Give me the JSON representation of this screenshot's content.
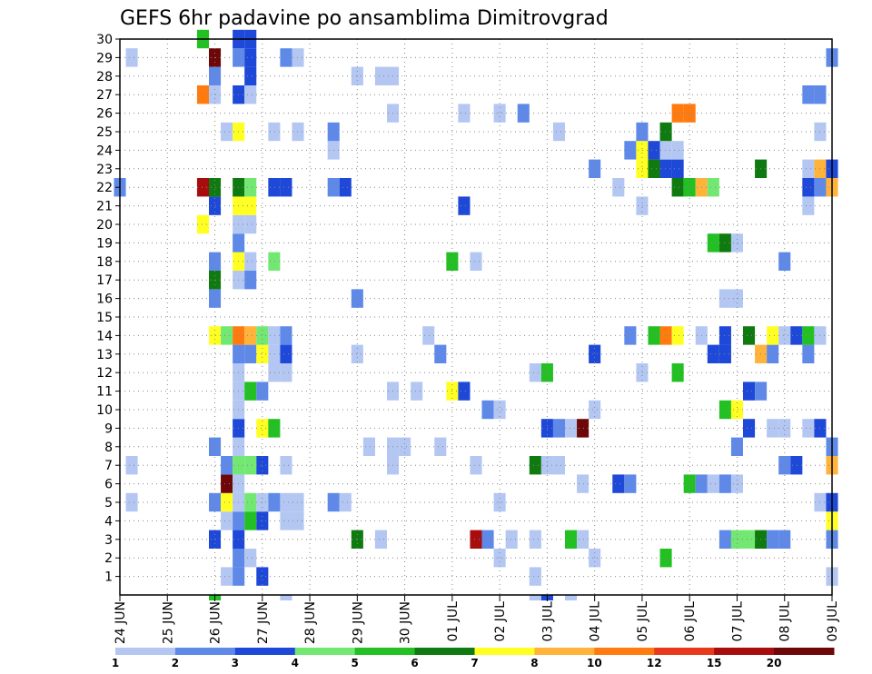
{
  "chart_data": {
    "type": "heatmap",
    "title": "GEFS 6hr padavine po ansamblima Dimitrovgrad",
    "xlabel": "",
    "ylabel": "",
    "x_tick_labels": [
      "24 JUN",
      "25 JUN",
      "26 JUN",
      "27 JUN",
      "28 JUN",
      "29 JUN",
      "30 JUN",
      "01 JUL",
      "02 JUL",
      "03 JUL",
      "04 JUL",
      "05 JUL",
      "06 JUL",
      "07 JUL",
      "08 JUL",
      "09 JUL"
    ],
    "x_range_steps": [
      0,
      60
    ],
    "y_tick_labels": [
      1,
      2,
      3,
      4,
      5,
      6,
      7,
      8,
      9,
      10,
      11,
      12,
      13,
      14,
      15,
      16,
      17,
      18,
      19,
      20,
      21,
      22,
      23,
      24,
      25,
      26,
      27,
      28,
      29,
      30
    ],
    "y_range": [
      0,
      30
    ],
    "grid": true,
    "legend": {
      "placement": "bottom",
      "boundaries": [
        1,
        2,
        3,
        4,
        5,
        6,
        7,
        8,
        10,
        12,
        15,
        20
      ],
      "colors": [
        "#b3c7f2",
        "#5e89e8",
        "#1d48d8",
        "#72e872",
        "#22c022",
        "#0f7a0f",
        "#ffff22",
        "#ffb33a",
        "#ff7b10",
        "#e83a1a",
        "#a80d0d",
        "#6e0707"
      ]
    },
    "cells_level_index_by_member": {
      "1": [
        [
          9,
          0
        ],
        [
          10,
          1
        ],
        [
          12,
          2
        ],
        [
          35,
          0
        ],
        [
          60,
          0
        ]
      ],
      "2": [
        [
          10,
          1
        ],
        [
          11,
          0
        ],
        [
          32,
          0
        ],
        [
          40,
          0
        ],
        [
          46,
          4
        ]
      ],
      "3": [
        [
          8,
          2
        ],
        [
          10,
          2
        ],
        [
          20,
          5
        ],
        [
          22,
          0
        ],
        [
          30,
          10
        ],
        [
          31,
          1
        ],
        [
          33,
          0
        ],
        [
          35,
          0
        ],
        [
          38,
          4
        ],
        [
          39,
          0
        ],
        [
          51,
          1
        ],
        [
          52,
          3
        ],
        [
          53,
          3
        ],
        [
          54,
          5
        ],
        [
          55,
          1
        ],
        [
          56,
          1
        ],
        [
          60,
          1
        ]
      ],
      "4": [
        [
          9,
          0
        ],
        [
          10,
          1
        ],
        [
          11,
          4
        ],
        [
          12,
          2
        ],
        [
          14,
          0
        ],
        [
          15,
          0
        ],
        [
          60,
          6
        ]
      ],
      "5": [
        [
          1,
          0
        ],
        [
          8,
          1
        ],
        [
          9,
          6
        ],
        [
          10,
          0
        ],
        [
          11,
          3
        ],
        [
          12,
          0
        ],
        [
          13,
          1
        ],
        [
          14,
          0
        ],
        [
          15,
          0
        ],
        [
          18,
          1
        ],
        [
          19,
          0
        ],
        [
          32,
          0
        ],
        [
          59,
          0
        ],
        [
          60,
          2
        ]
      ],
      "6": [
        [
          9,
          11
        ],
        [
          10,
          0
        ],
        [
          39,
          0
        ],
        [
          42,
          2
        ],
        [
          43,
          1
        ],
        [
          48,
          4
        ],
        [
          49,
          1
        ],
        [
          50,
          0
        ],
        [
          51,
          1
        ],
        [
          52,
          0
        ]
      ],
      "7": [
        [
          1,
          0
        ],
        [
          9,
          1
        ],
        [
          10,
          3
        ],
        [
          11,
          3
        ],
        [
          12,
          2
        ],
        [
          14,
          0
        ],
        [
          23,
          0
        ],
        [
          30,
          0
        ],
        [
          35,
          5
        ],
        [
          36,
          0
        ],
        [
          37,
          0
        ],
        [
          56,
          1
        ],
        [
          57,
          2
        ],
        [
          60,
          7
        ]
      ],
      "8": [
        [
          8,
          1
        ],
        [
          10,
          0
        ],
        [
          21,
          0
        ],
        [
          23,
          0
        ],
        [
          24,
          0
        ],
        [
          27,
          0
        ],
        [
          52,
          1
        ],
        [
          60,
          1
        ]
      ],
      "9": [
        [
          10,
          2
        ],
        [
          12,
          6
        ],
        [
          13,
          4
        ],
        [
          36,
          2
        ],
        [
          37,
          1
        ],
        [
          38,
          0
        ],
        [
          39,
          11
        ],
        [
          53,
          2
        ],
        [
          55,
          0
        ],
        [
          56,
          0
        ],
        [
          58,
          0
        ],
        [
          59,
          2
        ]
      ],
      "10": [
        [
          10,
          0
        ],
        [
          31,
          1
        ],
        [
          32,
          0
        ],
        [
          40,
          0
        ],
        [
          51,
          4
        ],
        [
          52,
          6
        ]
      ],
      "11": [
        [
          10,
          0
        ],
        [
          11,
          4
        ],
        [
          12,
          1
        ],
        [
          23,
          0
        ],
        [
          25,
          0
        ],
        [
          28,
          6
        ],
        [
          29,
          2
        ],
        [
          53,
          2
        ],
        [
          54,
          1
        ]
      ],
      "12": [
        [
          10,
          0
        ],
        [
          13,
          0
        ],
        [
          14,
          0
        ],
        [
          35,
          0
        ],
        [
          36,
          4
        ],
        [
          44,
          0
        ],
        [
          47,
          4
        ]
      ],
      "13": [
        [
          10,
          1
        ],
        [
          11,
          1
        ],
        [
          12,
          6
        ],
        [
          13,
          0
        ],
        [
          14,
          2
        ],
        [
          20,
          0
        ],
        [
          27,
          1
        ],
        [
          40,
          2
        ],
        [
          50,
          2
        ],
        [
          51,
          2
        ],
        [
          54,
          7
        ],
        [
          55,
          1
        ],
        [
          58,
          1
        ]
      ],
      "14": [
        [
          8,
          6
        ],
        [
          9,
          3
        ],
        [
          10,
          8
        ],
        [
          11,
          7
        ],
        [
          12,
          3
        ],
        [
          13,
          0
        ],
        [
          14,
          1
        ],
        [
          26,
          0
        ],
        [
          43,
          1
        ],
        [
          45,
          4
        ],
        [
          46,
          8
        ],
        [
          47,
          6
        ],
        [
          49,
          0
        ],
        [
          51,
          2
        ],
        [
          53,
          5
        ],
        [
          55,
          6
        ],
        [
          56,
          0
        ],
        [
          57,
          2
        ],
        [
          58,
          4
        ],
        [
          59,
          0
        ]
      ],
      "15": [],
      "16": [
        [
          8,
          1
        ],
        [
          20,
          1
        ],
        [
          51,
          0
        ],
        [
          52,
          0
        ]
      ],
      "17": [
        [
          8,
          5
        ],
        [
          10,
          0
        ],
        [
          11,
          1
        ]
      ],
      "18": [
        [
          8,
          1
        ],
        [
          10,
          6
        ],
        [
          11,
          0
        ],
        [
          13,
          3
        ],
        [
          28,
          4
        ],
        [
          30,
          0
        ],
        [
          56,
          1
        ]
      ],
      "19": [
        [
          10,
          1
        ],
        [
          50,
          4
        ],
        [
          51,
          5
        ],
        [
          52,
          0
        ]
      ],
      "20": [
        [
          7,
          6
        ],
        [
          10,
          0
        ],
        [
          11,
          0
        ]
      ],
      "21": [
        [
          8,
          2
        ],
        [
          10,
          6
        ],
        [
          11,
          6
        ],
        [
          29,
          2
        ],
        [
          44,
          0
        ],
        [
          58,
          0
        ]
      ],
      "22": [
        [
          0,
          1
        ],
        [
          7,
          10
        ],
        [
          8,
          5
        ],
        [
          10,
          5
        ],
        [
          11,
          3
        ],
        [
          13,
          2
        ],
        [
          14,
          2
        ],
        [
          18,
          1
        ],
        [
          19,
          2
        ],
        [
          42,
          0
        ],
        [
          47,
          5
        ],
        [
          48,
          4
        ],
        [
          49,
          7
        ],
        [
          50,
          3
        ],
        [
          58,
          2
        ],
        [
          59,
          1
        ],
        [
          60,
          7
        ]
      ],
      "23": [
        [
          40,
          1
        ],
        [
          44,
          6
        ],
        [
          45,
          5
        ],
        [
          46,
          2
        ],
        [
          47,
          2
        ],
        [
          54,
          5
        ],
        [
          58,
          0
        ],
        [
          59,
          7
        ],
        [
          60,
          2
        ]
      ],
      "24": [
        [
          18,
          0
        ],
        [
          43,
          1
        ],
        [
          44,
          6
        ],
        [
          45,
          2
        ],
        [
          46,
          0
        ],
        [
          47,
          0
        ]
      ],
      "25": [
        [
          9,
          0
        ],
        [
          10,
          6
        ],
        [
          13,
          0
        ],
        [
          15,
          0
        ],
        [
          18,
          1
        ],
        [
          37,
          0
        ],
        [
          44,
          1
        ],
        [
          46,
          5
        ],
        [
          59,
          0
        ]
      ],
      "26": [
        [
          23,
          0
        ],
        [
          29,
          0
        ],
        [
          32,
          0
        ],
        [
          34,
          1
        ],
        [
          47,
          8
        ],
        [
          48,
          8
        ]
      ],
      "27": [
        [
          7,
          8
        ],
        [
          8,
          0
        ],
        [
          10,
          2
        ],
        [
          11,
          0
        ],
        [
          58,
          1
        ],
        [
          59,
          1
        ]
      ],
      "28": [
        [
          8,
          1
        ],
        [
          11,
          2
        ],
        [
          20,
          0
        ],
        [
          22,
          0
        ],
        [
          23,
          0
        ]
      ],
      "29": [
        [
          1,
          0
        ],
        [
          8,
          11
        ],
        [
          10,
          1
        ],
        [
          11,
          2
        ],
        [
          14,
          1
        ],
        [
          15,
          0
        ],
        [
          60,
          1
        ]
      ],
      "30": [
        [
          7,
          4
        ],
        [
          10,
          2
        ],
        [
          11,
          2
        ]
      ]
    },
    "bottom_edge_marks": [
      [
        8,
        4
      ],
      [
        14,
        0
      ],
      [
        35,
        0
      ],
      [
        36,
        2
      ],
      [
        38,
        0
      ]
    ]
  }
}
